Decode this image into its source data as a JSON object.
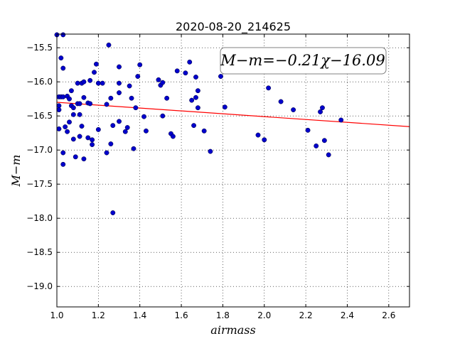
{
  "chart_data": {
    "type": "scatter",
    "title": "2020-08-20_214625",
    "xlabel": "airmass",
    "ylabel": "M−m",
    "xlim": [
      1.0,
      2.7
    ],
    "ylim": [
      -19.3,
      -15.3
    ],
    "y_inverted": true,
    "grid": true,
    "x_ticks": [
      1.0,
      1.2,
      1.4,
      1.6,
      1.8,
      2.0,
      2.2,
      2.4,
      2.6
    ],
    "x_tick_labels": [
      "1.0",
      "1.2",
      "1.4",
      "1.6",
      "1.8",
      "2.0",
      "2.2",
      "2.4",
      "2.6"
    ],
    "y_ticks": [
      -15.5,
      -16.0,
      -16.5,
      -17.0,
      -17.5,
      -18.0,
      -18.5,
      -19.0
    ],
    "y_tick_labels": [
      "−15.5",
      "−16.0",
      "−16.5",
      "−17.0",
      "−17.5",
      "−18.0",
      "−18.5",
      "−19.0"
    ],
    "annotation": "M−m=−0.21χ−16.09",
    "fit_line": {
      "slope": -0.21,
      "intercept": -16.09,
      "color": "#ff0000"
    },
    "marker_color": "#0000cc",
    "points": [
      [
        1.0,
        -15.31
      ],
      [
        1.03,
        -15.31
      ],
      [
        1.02,
        -15.65
      ],
      [
        1.03,
        -15.8
      ],
      [
        1.01,
        -16.22
      ],
      [
        1.02,
        -16.22
      ],
      [
        1.03,
        -16.22
      ],
      [
        1.01,
        -16.35
      ],
      [
        1.01,
        -16.41
      ],
      [
        1.01,
        -16.69
      ],
      [
        1.04,
        -16.66
      ],
      [
        1.05,
        -16.73
      ],
      [
        1.03,
        -17.04
      ],
      [
        1.03,
        -17.21
      ],
      [
        1.05,
        -16.21
      ],
      [
        1.06,
        -16.25
      ],
      [
        1.07,
        -16.13
      ],
      [
        1.07,
        -16.35
      ],
      [
        1.08,
        -16.38
      ],
      [
        1.06,
        -16.59
      ],
      [
        1.08,
        -16.48
      ],
      [
        1.08,
        -16.84
      ],
      [
        1.09,
        -17.1
      ],
      [
        1.1,
        -16.32
      ],
      [
        1.1,
        -16.02
      ],
      [
        1.11,
        -16.32
      ],
      [
        1.11,
        -16.48
      ],
      [
        1.11,
        -16.8
      ],
      [
        1.12,
        -16.65
      ],
      [
        1.12,
        -16.02
      ],
      [
        1.13,
        -16.0
      ],
      [
        1.13,
        -16.23
      ],
      [
        1.13,
        -17.13
      ],
      [
        1.15,
        -16.31
      ],
      [
        1.15,
        -16.82
      ],
      [
        1.16,
        -15.98
      ],
      [
        1.16,
        -16.32
      ],
      [
        1.17,
        -16.85
      ],
      [
        1.17,
        -16.92
      ],
      [
        1.18,
        -15.86
      ],
      [
        1.19,
        -15.74
      ],
      [
        1.2,
        -16.02
      ],
      [
        1.2,
        -16.7
      ],
      [
        1.22,
        -16.02
      ],
      [
        1.24,
        -16.33
      ],
      [
        1.24,
        -17.04
      ],
      [
        1.25,
        -15.46
      ],
      [
        1.26,
        -16.24
      ],
      [
        1.27,
        -16.64
      ],
      [
        1.26,
        -16.91
      ],
      [
        1.27,
        -17.92
      ],
      [
        1.3,
        -15.78
      ],
      [
        1.3,
        -16.02
      ],
      [
        1.3,
        -16.16
      ],
      [
        1.3,
        -16.58
      ],
      [
        1.33,
        -16.73
      ],
      [
        1.34,
        -16.67
      ],
      [
        1.35,
        -16.06
      ],
      [
        1.36,
        -16.24
      ],
      [
        1.37,
        -16.98
      ],
      [
        1.38,
        -16.38
      ],
      [
        1.39,
        -15.92
      ],
      [
        1.4,
        -15.75
      ],
      [
        1.42,
        -16.51
      ],
      [
        1.43,
        -16.72
      ],
      [
        1.49,
        -15.97
      ],
      [
        1.5,
        -16.05
      ],
      [
        1.51,
        -16.01
      ],
      [
        1.51,
        -16.5
      ],
      [
        1.53,
        -16.24
      ],
      [
        1.55,
        -16.76
      ],
      [
        1.56,
        -16.8
      ],
      [
        1.58,
        -15.84
      ],
      [
        1.62,
        -15.87
      ],
      [
        1.64,
        -15.71
      ],
      [
        1.65,
        -16.27
      ],
      [
        1.66,
        -16.64
      ],
      [
        1.67,
        -15.93
      ],
      [
        1.67,
        -16.23
      ],
      [
        1.68,
        -16.13
      ],
      [
        1.68,
        -16.38
      ],
      [
        1.71,
        -16.72
      ],
      [
        1.74,
        -17.02
      ],
      [
        1.79,
        -15.92
      ],
      [
        1.81,
        -16.37
      ],
      [
        1.97,
        -16.78
      ],
      [
        2.0,
        -16.85
      ],
      [
        2.02,
        -16.09
      ],
      [
        2.08,
        -16.29
      ],
      [
        2.14,
        -16.41
      ],
      [
        2.21,
        -16.71
      ],
      [
        2.25,
        -16.94
      ],
      [
        2.27,
        -16.44
      ],
      [
        2.28,
        -16.38
      ],
      [
        2.29,
        -16.86
      ],
      [
        2.31,
        -17.07
      ],
      [
        2.37,
        -16.56
      ]
    ]
  }
}
